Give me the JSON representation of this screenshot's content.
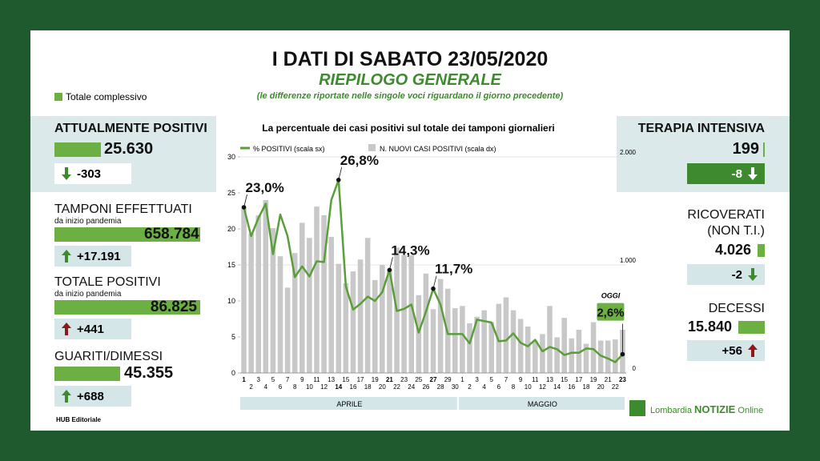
{
  "header": {
    "title": "I DATI DI SABATO 23/05/2020",
    "subtitle": "RIEPILOGO GENERALE",
    "note": "(le differenze riportate nelle singole voci riguardano il giorno precedente)",
    "legend": "Totale complessivo"
  },
  "left_panels": [
    {
      "title": "ATTUALMENTE POSITIVI",
      "value": "25.630",
      "delta": "-303"
    },
    {
      "title": "TAMPONI EFFETTUATI",
      "subtitle": "da inizio pandemia",
      "value": "658.784",
      "delta": "+17.191"
    },
    {
      "title": "TOTALE POSITIVI",
      "subtitle": "da inizio pandemia",
      "value": "86.825",
      "delta": "+441"
    },
    {
      "title": "GUARITI/DIMESSI",
      "value": "45.355",
      "delta": "+688"
    }
  ],
  "right_panels": [
    {
      "title": "TERAPIA INTENSIVA",
      "value": "199",
      "delta": "-8"
    },
    {
      "title": "RICOVERATI",
      "subtitle": "(NON T.I.)",
      "value": "4.026",
      "delta": "-2"
    },
    {
      "title": "DECESSI",
      "value": "15.840",
      "delta": "+56"
    }
  ],
  "footer": {
    "credit": "HUB Editoriale",
    "logo": "Lombardia",
    "logo_bold": "NOTIZIE",
    "logo_end": "Online"
  },
  "chart_data": {
    "type": "combo",
    "title": "La percentuale dei casi positivi sul totale dei tamponi giornalieri",
    "categories": [
      "1",
      "2",
      "3",
      "4",
      "5",
      "6",
      "7",
      "8",
      "9",
      "10",
      "11",
      "12",
      "13",
      "14",
      "15",
      "16",
      "17",
      "18",
      "19",
      "20",
      "21",
      "22",
      "23",
      "24",
      "25",
      "26",
      "27",
      "28",
      "29",
      "30",
      "1",
      "2",
      "3",
      "4",
      "5",
      "6",
      "7",
      "8",
      "9",
      "10",
      "11",
      "12",
      "13",
      "14",
      "15",
      "16",
      "17",
      "18",
      "19",
      "20",
      "21",
      "22",
      "23"
    ],
    "months": [
      "APRILE",
      "MAGGIO"
    ],
    "annotation": "OGGI",
    "series": [
      {
        "name": "% POSITIVI (scala sx)",
        "color": "#5a9e3a",
        "type": "line",
        "values": [
          23.0,
          19,
          21.5,
          23.5,
          16.5,
          22,
          19,
          13.3,
          14.8,
          13.4,
          15.5,
          15.4,
          24,
          26.8,
          12,
          8.8,
          9.6,
          10.6,
          10,
          11.2,
          14.3,
          8.6,
          8.9,
          9.5,
          5.6,
          8.5,
          11.7,
          9.5,
          5.4,
          5.4,
          5.4,
          4.1,
          7.4,
          7.2,
          7.0,
          4.4,
          4.5,
          5.5,
          4.2,
          3.7,
          4.6,
          3.0,
          3.6,
          3.3,
          2.5,
          2.8,
          2.8,
          3.4,
          3.3,
          2.4,
          2.0,
          1.5,
          2.6
        ],
        "value_labels": [
          "23,0%",
          null,
          null,
          null,
          null,
          null,
          null,
          null,
          null,
          null,
          null,
          null,
          null,
          "26,8%",
          null,
          null,
          null,
          null,
          null,
          null,
          "14,3%",
          null,
          null,
          null,
          null,
          null,
          "11,7%",
          null,
          null,
          null,
          null,
          null,
          null,
          null,
          null,
          null,
          null,
          null,
          null,
          null,
          null,
          null,
          null,
          null,
          null,
          null,
          null,
          null,
          null,
          null,
          null,
          null,
          "2,6%"
        ]
      },
      {
        "name": "N. NUOVI CASI POSITIVI (scala dx)",
        "color": "#c8c8c8",
        "type": "bar",
        "axis": "y2",
        "values": [
          1530,
          1290,
          1460,
          1600,
          1340,
          1080,
          790,
          1110,
          1390,
          1250,
          1540,
          1460,
          1260,
          1010,
          830,
          940,
          1050,
          1250,
          860,
          1000,
          960,
          1160,
          1090,
          1090,
          720,
          920,
          590,
          870,
          780,
          600,
          620,
          460,
          520,
          580,
          470,
          640,
          700,
          580,
          500,
          430,
          300,
          360,
          620,
          330,
          510,
          320,
          400,
          270,
          470,
          300,
          300,
          310,
          400
        ]
      }
    ],
    "ylim": [
      0,
      30
    ],
    "yticks": [
      0,
      5,
      10,
      15,
      20,
      25,
      30
    ],
    "y2lim": [
      0,
      2000
    ],
    "y2ticks": [
      0,
      {
        "value": 1000,
        "label": "1.000"
      },
      {
        "value": 2000,
        "label": "2.000"
      }
    ]
  }
}
